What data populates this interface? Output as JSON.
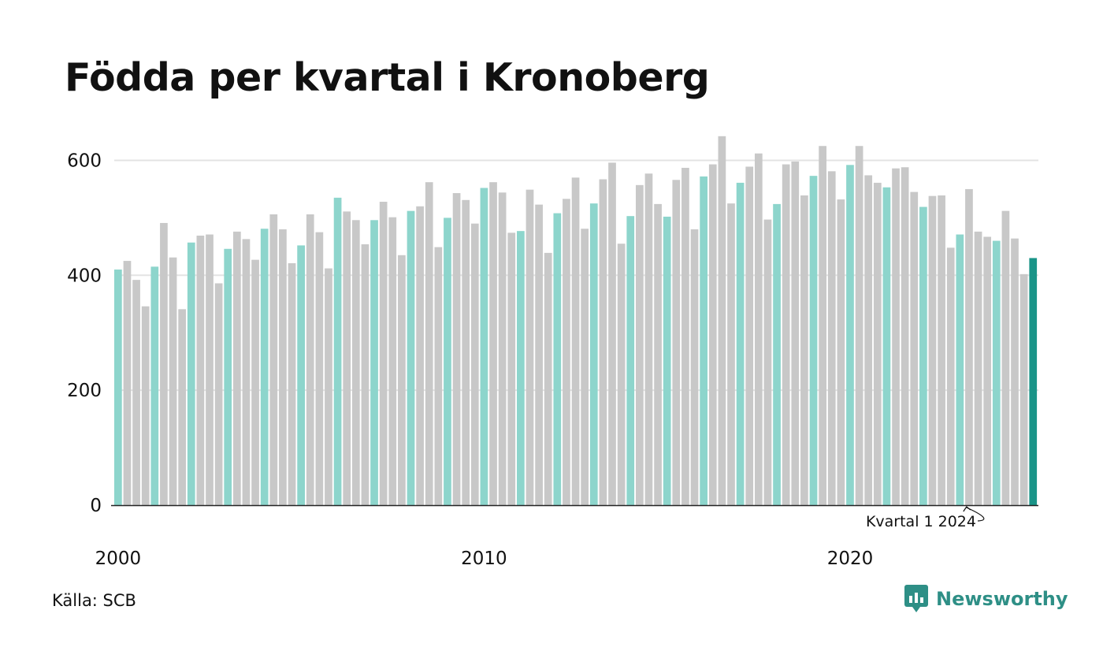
{
  "title": "Födda per kvartal i Kronoberg",
  "source": "Källa: SCB",
  "brand": {
    "name": "Newsworthy",
    "icon": "newsworthy-logo-icon"
  },
  "colors": {
    "q1": "#8dd5cc",
    "other": "#c8c8c8",
    "latest": "#1a9488",
    "grid": "#e3e3e3",
    "axis": "#222222",
    "brand": "#2e8f86"
  },
  "chart_data": {
    "type": "bar",
    "title": "Födda per kvartal i Kronoberg",
    "xlabel": "",
    "ylabel": "",
    "ylim": [
      0,
      650
    ],
    "yticks": [
      0,
      200,
      400,
      600
    ],
    "xtick_labels": [
      {
        "label": "2000",
        "year": 2000
      },
      {
        "label": "2010",
        "year": 2010
      },
      {
        "label": "2020",
        "year": 2020
      }
    ],
    "start": {
      "year": 2000,
      "quarter": 1
    },
    "grid": true,
    "legend": "none",
    "values": [
      410,
      425,
      392,
      346,
      415,
      491,
      431,
      341,
      457,
      469,
      471,
      386,
      446,
      476,
      463,
      427,
      481,
      506,
      480,
      421,
      452,
      506,
      475,
      412,
      535,
      511,
      496,
      454,
      496,
      528,
      501,
      435,
      512,
      520,
      562,
      449,
      500,
      543,
      531,
      490,
      552,
      562,
      544,
      474,
      477,
      549,
      523,
      439,
      508,
      533,
      570,
      481,
      525,
      567,
      596,
      455,
      503,
      557,
      577,
      524,
      502,
      566,
      587,
      480,
      572,
      593,
      642,
      525,
      561,
      589,
      612,
      497,
      524,
      593,
      598,
      539,
      573,
      625,
      581,
      532,
      592,
      625,
      574,
      561,
      553,
      586,
      588,
      545,
      519,
      538,
      539,
      448,
      471,
      550,
      476,
      467,
      460,
      512,
      464,
      402,
      430
    ],
    "annotation": {
      "label": "Kvartal 1 2024",
      "year": 2024,
      "quarter": 1
    }
  }
}
